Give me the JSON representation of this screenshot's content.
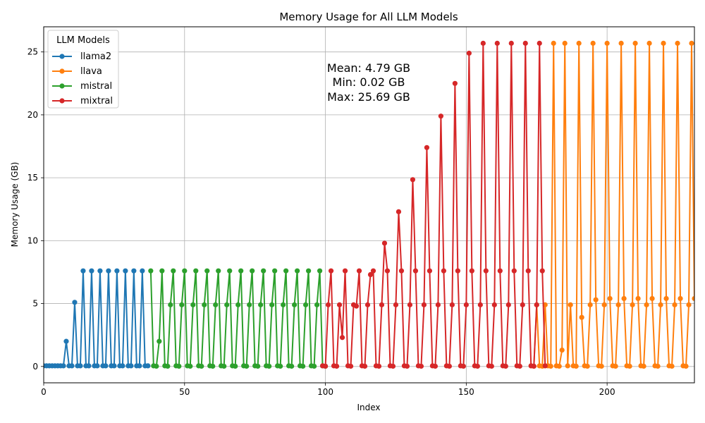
{
  "chart_data": {
    "type": "line",
    "title": "Memory Usage for All LLM Models",
    "xlabel": "Index",
    "ylabel": "Memory Usage (GB)",
    "xlim": [
      0,
      231
    ],
    "ylim": [
      -1.3,
      27.0
    ],
    "xticks": [
      0,
      50,
      100,
      150,
      200
    ],
    "yticks": [
      0,
      5,
      10,
      15,
      20,
      25
    ],
    "grid": true,
    "legend": {
      "title": "LLM Models",
      "placement": "top-left"
    },
    "annotation": [
      "Mean: 4.79 GB",
      "Min: 0.02 GB",
      "Max: 25.69 GB"
    ],
    "series": [
      {
        "name": "llama2",
        "color": "#1f77b4",
        "x_start": 0,
        "values": [
          0.05,
          0.05,
          0.05,
          0.05,
          0.05,
          0.05,
          0.05,
          0.05,
          2.0,
          0.05,
          0.05,
          5.1,
          0.05,
          0.05,
          7.6,
          0.05,
          0.05,
          7.6,
          0.05,
          0.05,
          7.6,
          0.05,
          0.05,
          7.6,
          0.05,
          0.05,
          7.6,
          0.05,
          0.05,
          7.6,
          0.05,
          0.05,
          7.6,
          0.05,
          0.05,
          7.6,
          0.05,
          0.05
        ]
      },
      {
        "name": "llava",
        "color": "#ff7f0e",
        "x_start": 173,
        "values": [
          0.05,
          0.02,
          4.9,
          0.05,
          0.02,
          4.9,
          0.05,
          0.02,
          25.69,
          0.05,
          0.02,
          1.3,
          25.69,
          0.05,
          4.9,
          0.05,
          0.02,
          25.69,
          3.9,
          0.05,
          0.02,
          4.9,
          25.69,
          5.3,
          0.05,
          0.02,
          4.9,
          25.69,
          5.4,
          0.05,
          0.02,
          4.9,
          25.69,
          5.4,
          0.05,
          0.02,
          4.9,
          25.69,
          5.4,
          0.05,
          0.02,
          4.9,
          25.69,
          5.4,
          0.05,
          0.02,
          4.9,
          25.69,
          5.4,
          0.05,
          0.02,
          4.9,
          25.69,
          5.4,
          0.05,
          0.02,
          4.9,
          25.69,
          5.4
        ]
      },
      {
        "name": "mistral",
        "color": "#2ca02c",
        "x_start": 38,
        "values": [
          7.6,
          0.05,
          0.02,
          2.0,
          7.6,
          0.05,
          0.02,
          4.9,
          7.6,
          0.05,
          0.02,
          4.9,
          7.6,
          0.05,
          0.02,
          4.9,
          7.6,
          0.05,
          0.02,
          4.9,
          7.6,
          0.05,
          0.02,
          4.9,
          7.6,
          0.05,
          0.02,
          4.9,
          7.6,
          0.05,
          0.02,
          4.9,
          7.6,
          0.05,
          0.02,
          4.9,
          7.6,
          0.05,
          0.02,
          4.9,
          7.6,
          0.05,
          0.02,
          4.9,
          7.6,
          0.05,
          0.02,
          4.9,
          7.6,
          0.05,
          0.02,
          4.9,
          7.6,
          0.05,
          0.02,
          4.9,
          7.6,
          0.05,
          0.02,
          4.9,
          7.6,
          0.05,
          0.02
        ]
      },
      {
        "name": "mixtral",
        "color": "#d62728",
        "x_start": 99,
        "values": [
          0.05,
          0.02,
          4.9,
          7.6,
          0.05,
          0.02,
          4.9,
          2.3,
          7.6,
          0.05,
          0.02,
          4.9,
          4.8,
          7.6,
          0.05,
          0.02,
          4.9,
          7.3,
          7.6,
          0.05,
          0.02,
          4.9,
          9.8,
          7.6,
          0.05,
          0.02,
          4.9,
          12.3,
          7.6,
          0.05,
          0.02,
          4.9,
          14.85,
          7.6,
          0.05,
          0.02,
          4.9,
          17.4,
          7.6,
          0.05,
          0.02,
          4.9,
          19.9,
          7.6,
          0.05,
          0.02,
          4.9,
          22.5,
          7.6,
          0.05,
          0.02,
          4.9,
          24.9,
          7.6,
          0.05,
          0.02,
          4.9,
          25.69,
          7.6,
          0.05,
          0.02,
          4.9,
          25.69,
          7.6,
          0.05,
          0.02,
          4.9,
          25.69,
          7.6,
          0.05,
          0.02,
          4.9,
          25.69,
          7.6,
          0.05,
          0.02,
          4.9,
          25.69,
          7.6,
          0.05
        ]
      }
    ]
  }
}
